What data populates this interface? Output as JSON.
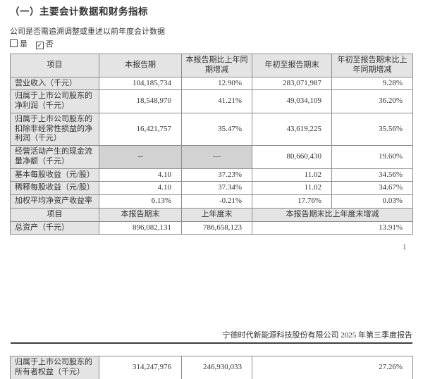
{
  "section": {
    "title": "（一）主要会计数据和财务指标",
    "question": "公司是否需追溯调整或重述以前年度会计数据",
    "checkboxes": [
      {
        "label": "是",
        "checked": false
      },
      {
        "label": "否",
        "checked": true
      }
    ]
  },
  "icons": {
    "check": "✓",
    "checkbox_unchecked": "□",
    "checkbox_checked": "☑"
  },
  "table1": {
    "sections": [
      {
        "header": [
          "项目",
          "本报告期",
          "本报告期比上年同期增减",
          "年初至报告期末",
          "年初至报告期末比上年同期增减"
        ],
        "rows": [
          {
            "cells": [
              "营业收入（千元）",
              "104,185,734",
              "12.90%",
              "283,071,987",
              "9.28%"
            ]
          },
          {
            "cells": [
              "归属于上市公司股东的净利润（千元）",
              "18,548,970",
              "41.21%",
              "49,034,109",
              "36.20%"
            ]
          },
          {
            "cells": [
              "归属于上市公司股东的扣除非经常性损益的净利润（千元）",
              "16,421,757",
              "35.47%",
              "43,619,225",
              "35.56%"
            ]
          },
          {
            "cells": [
              "经营活动产生的现金流量净额（千元）",
              "--",
              "—",
              "80,660,430",
              "19.60%"
            ],
            "muted": [
              1,
              2
            ]
          },
          {
            "cells": [
              "基本每股收益（元/股）",
              "4.10",
              "37.23%",
              "11.02",
              "34.56%"
            ]
          },
          {
            "cells": [
              "稀释每股收益（元/股）",
              "4.10",
              "37.34%",
              "11.02",
              "34.67%"
            ]
          },
          {
            "cells": [
              "加权平均净资产收益率",
              "6.13%",
              "-0.21%",
              "17.76%",
              "0.03%"
            ]
          }
        ]
      },
      {
        "header": [
          "项目",
          "本报告期末",
          "上年度末",
          "本报告期末比上年度末增减"
        ],
        "rows": [
          {
            "cells": [
              "总资产（千元）",
              "896,082,131",
              "786,658,123",
              "13.91%"
            ]
          }
        ]
      }
    ]
  },
  "page_number": "1",
  "next_page": {
    "header": "宁德时代新能源科技股份有限公司 2025 年第三季度报告",
    "table_rows": [
      {
        "cells": [
          "归属于上市公司股东的所有者权益（千元）",
          "314,247,976",
          "246,930,033",
          "27.26%"
        ]
      }
    ]
  },
  "colors": {
    "header_bg": "#e4e4e4",
    "muted_bg": "#d2d2d2",
    "border": "#8c8c8c",
    "rule": "#3f3f3f",
    "text": "#333333"
  }
}
